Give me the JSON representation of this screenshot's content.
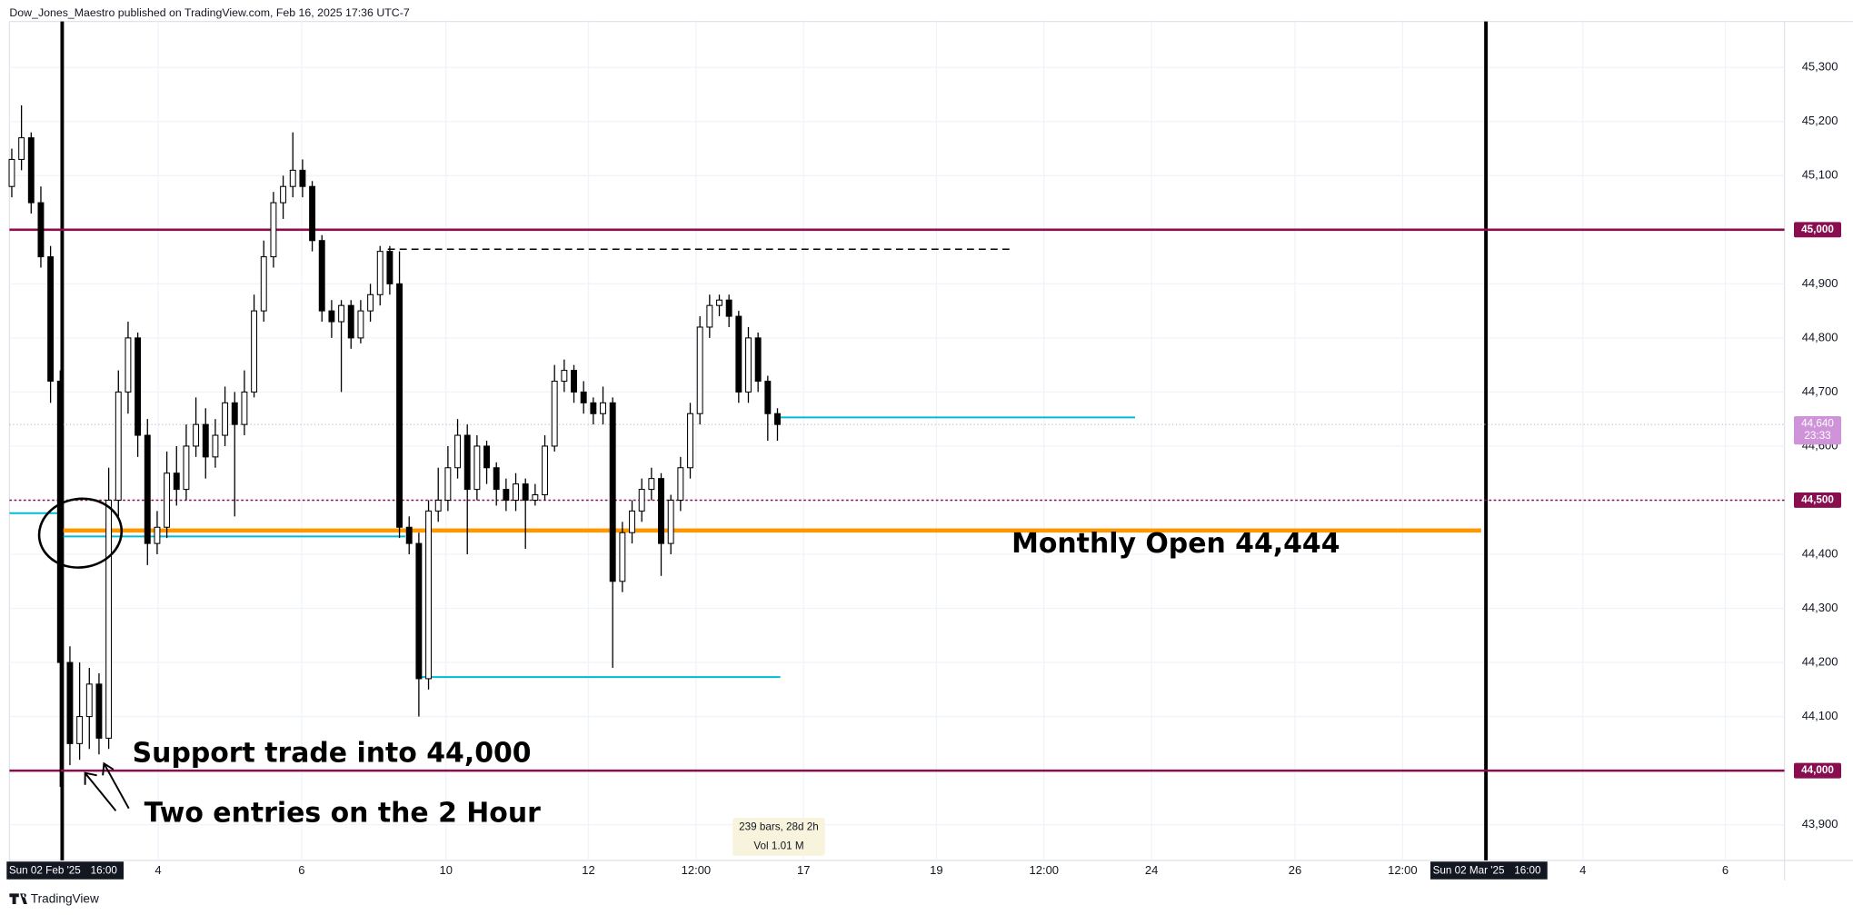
{
  "chart_data": {
    "type": "candlestick",
    "header": "Dow_Jones_Maestro published on TradingView.com, Feb 16, 2025 17:36 UTC-7",
    "footer": "TradingView",
    "up_color": "#ffffff",
    "down_color": "#000000",
    "outline_color": "#000000",
    "grid": true,
    "x": [
      0,
      1,
      2,
      3,
      4,
      5,
      6,
      7,
      8,
      9,
      10,
      11,
      12,
      13,
      14,
      15,
      16,
      17,
      18,
      19,
      20,
      21,
      22,
      23,
      24,
      25,
      26,
      27,
      28,
      29,
      30,
      31,
      32,
      33,
      34,
      35,
      36,
      37,
      38,
      39,
      40,
      41,
      42,
      43,
      44,
      45,
      46,
      47,
      48,
      49,
      50,
      51,
      52,
      53,
      54,
      55,
      56,
      57,
      58,
      59,
      60,
      61,
      62,
      63,
      64,
      65,
      66,
      67,
      68,
      69,
      70,
      71,
      72,
      73,
      74,
      75,
      76,
      77,
      78,
      79
    ],
    "open": [
      45080,
      45130,
      45170,
      45050,
      44950,
      44720,
      44200,
      44050,
      44100,
      44160,
      44060,
      44500,
      44700,
      44800,
      44620,
      44420,
      44450,
      44550,
      44520,
      44600,
      44640,
      44580,
      44620,
      44680,
      44640,
      44700,
      44850,
      44950,
      45050,
      45080,
      45110,
      45080,
      44980,
      44850,
      44830,
      44860,
      44800,
      44850,
      44880,
      44960,
      44900,
      44450,
      44420,
      44170,
      44480,
      44500,
      44560,
      44620,
      44520,
      44600,
      44560,
      44520,
      44500,
      44530,
      44500,
      44510,
      44600,
      44720,
      44740,
      44700,
      44680,
      44660,
      44680,
      44350,
      44440,
      44480,
      44520,
      44540,
      44420,
      44500,
      44560,
      44660,
      44820,
      44860,
      44870,
      44840,
      44700,
      44800,
      44720,
      44660
    ],
    "high": [
      45150,
      45230,
      45180,
      45080,
      44970,
      44740,
      44230,
      44200,
      44190,
      44180,
      44560,
      44740,
      44830,
      44810,
      44650,
      44480,
      44590,
      44600,
      44640,
      44690,
      44670,
      44650,
      44710,
      44700,
      44740,
      44880,
      44980,
      45070,
      45100,
      45180,
      45130,
      45090,
      44990,
      44870,
      44870,
      44870,
      44870,
      44900,
      44970,
      44970,
      44960,
      44470,
      44440,
      44500,
      44560,
      44600,
      44650,
      44640,
      44620,
      44610,
      44570,
      44540,
      44550,
      44540,
      44530,
      44620,
      44750,
      44760,
      44750,
      44720,
      44690,
      44710,
      44690,
      44460,
      44500,
      44540,
      44560,
      44550,
      44510,
      44580,
      44680,
      44840,
      44880,
      44880,
      44880,
      44850,
      44820,
      44810,
      44730,
      44670
    ],
    "low": [
      45060,
      45110,
      45030,
      44930,
      44680,
      43970,
      44010,
      44020,
      44040,
      44030,
      44040,
      44470,
      44660,
      44580,
      44380,
      44400,
      44430,
      44490,
      44500,
      44580,
      44540,
      44560,
      44600,
      44470,
      44620,
      44690,
      44830,
      44930,
      45020,
      45060,
      45060,
      44960,
      44830,
      44800,
      44700,
      44780,
      44790,
      44830,
      44860,
      44880,
      44430,
      44400,
      44100,
      44150,
      44460,
      44480,
      44540,
      44400,
      44500,
      44530,
      44490,
      44480,
      44480,
      44410,
      44490,
      44500,
      44590,
      44700,
      44680,
      44660,
      44640,
      44640,
      44190,
      44330,
      44420,
      44460,
      44500,
      44360,
      44400,
      44480,
      44540,
      44640,
      44800,
      44840,
      44820,
      44680,
      44680,
      44700,
      44610,
      44610
    ],
    "close": [
      45130,
      45170,
      45050,
      44950,
      44720,
      44200,
      44050,
      44100,
      44160,
      44060,
      44500,
      44700,
      44800,
      44620,
      44420,
      44450,
      44550,
      44520,
      44600,
      44640,
      44580,
      44620,
      44680,
      44640,
      44700,
      44850,
      44950,
      45050,
      45080,
      45110,
      45080,
      44980,
      44850,
      44830,
      44860,
      44800,
      44850,
      44880,
      44960,
      44900,
      44450,
      44420,
      44170,
      44480,
      44500,
      44560,
      44620,
      44520,
      44600,
      44560,
      44520,
      44500,
      44530,
      44500,
      44510,
      44600,
      44720,
      44740,
      44700,
      44680,
      44660,
      44680,
      44350,
      44440,
      44480,
      44520,
      44540,
      44420,
      44500,
      44560,
      44660,
      44820,
      44860,
      44870,
      44840,
      44700,
      44800,
      44720,
      44660,
      44640
    ],
    "xlim": [
      -0.24,
      182.9
    ],
    "ylim": [
      43834,
      45385
    ],
    "yticks": [
      {
        "value": 43900,
        "label": "43,900"
      },
      {
        "value": 44000,
        "label": "44,000"
      },
      {
        "value": 44100,
        "label": "44,100"
      },
      {
        "value": 44200,
        "label": "44,200"
      },
      {
        "value": 44300,
        "label": "44,300"
      },
      {
        "value": 44400,
        "label": "44,400"
      },
      {
        "value": 44500,
        "label": "44,500"
      },
      {
        "value": 44600,
        "label": "44,600"
      },
      {
        "value": 44700,
        "label": "44,700"
      },
      {
        "value": 44800,
        "label": "44,800"
      },
      {
        "value": 44900,
        "label": "44,900"
      },
      {
        "value": 45000,
        "label": "45,000"
      },
      {
        "value": 45100,
        "label": "45,100"
      },
      {
        "value": 45200,
        "label": "45,200"
      },
      {
        "value": 45300,
        "label": "45,300"
      }
    ],
    "xticks": [
      {
        "value": 15.1,
        "label": "4"
      },
      {
        "value": 29.9,
        "label": "6"
      },
      {
        "value": 44.8,
        "label": "10"
      },
      {
        "value": 59.5,
        "label": "12"
      },
      {
        "value": 70.6,
        "label": "12:00"
      },
      {
        "value": 81.7,
        "label": "17"
      },
      {
        "value": 95.4,
        "label": "19"
      },
      {
        "value": 106.5,
        "label": "12:00"
      },
      {
        "value": 117.6,
        "label": "24"
      },
      {
        "value": 132.4,
        "label": "26"
      },
      {
        "value": 143.5,
        "label": "12:00"
      },
      {
        "value": 162.1,
        "label": "4"
      },
      {
        "value": 176.8,
        "label": "6"
      }
    ],
    "x_markers": [
      {
        "value": 5.2,
        "date": "Sun 02 Feb '25",
        "time": "16:00"
      },
      {
        "value": 152.1,
        "date": "Sun 02 Mar '25",
        "time": "16:00"
      }
    ],
    "hlines": [
      {
        "value": 45000,
        "label": "45,000",
        "color": "#880e4f",
        "style": "solid",
        "width": 2
      },
      {
        "value": 44500,
        "label": "44,500",
        "color": "#880e4f",
        "style": "dotted",
        "width": 1.2
      },
      {
        "value": 44000,
        "label": "44,000",
        "color": "#880e4f",
        "style": "solid",
        "width": 2
      },
      {
        "value": 44444,
        "color": "#ff9800",
        "style": "solid",
        "width": 3.5,
        "from": 5.2,
        "to": 151.6
      },
      {
        "value": 44653,
        "color": "#00bcd4",
        "style": "solid",
        "width": 1.5,
        "from": 79.3,
        "to": 115.9
      },
      {
        "value": 44173,
        "color": "#00bcd4",
        "style": "solid",
        "width": 1.5,
        "from": 42.3,
        "to": 79.3
      },
      {
        "value": 44433,
        "color": "#00bcd4",
        "style": "solid",
        "width": 1.5,
        "from": 5.2,
        "to": 40.6
      },
      {
        "value": 44476,
        "color": "#00bcd4",
        "style": "solid",
        "width": 1.5,
        "from": -0.24,
        "to": 5.1
      },
      {
        "value": 44964,
        "color": "#000000",
        "style": "dashed",
        "width": 1.2,
        "from": 38.8,
        "to": 103.4
      }
    ],
    "last_price": {
      "value": 44640,
      "label": "44,640",
      "countdown": "23:33",
      "color": "#ce93d8"
    },
    "annotations": [
      "Monthly Open 44,444",
      "Support trade into 44,000",
      "Two entries on the 2 Hour"
    ],
    "info": [
      "239 bars, 28d 2h",
      "Vol 1.01 M"
    ]
  }
}
